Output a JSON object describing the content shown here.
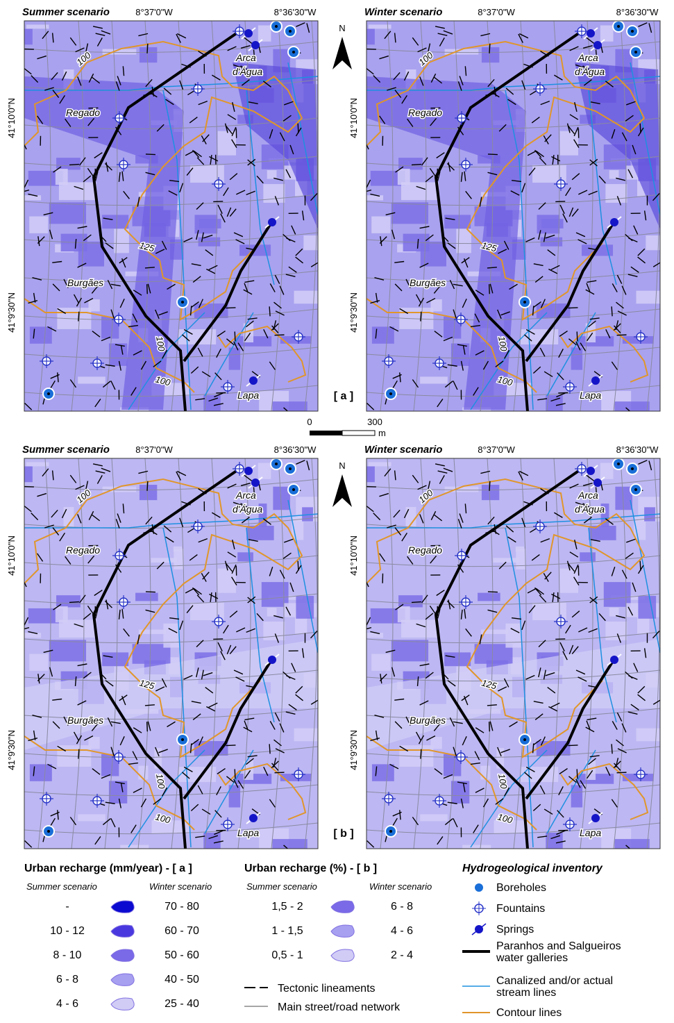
{
  "maps": [
    {
      "title": "Summer scenario",
      "label": "[ a ]"
    },
    {
      "title": "Winter scenario"
    },
    {
      "title": "Summer scenario",
      "label": "[ b ]"
    },
    {
      "title": "Winter scenario"
    }
  ],
  "coordinates": {
    "lon": [
      "8°37'0\"W",
      "8°36'30\"W"
    ],
    "lat": [
      "41°10'0\"N",
      "41°9'30\"N"
    ]
  },
  "places": {
    "regado": "Regado",
    "burgaes": "Burgães",
    "arca": [
      "Arca",
      "d'Água"
    ],
    "lapa": "Lapa"
  },
  "contours": [
    "100",
    "125",
    "100",
    "100"
  ],
  "north": "N",
  "scale": {
    "ticks": [
      "0",
      "300"
    ],
    "unit": "m"
  },
  "legend": {
    "recharge_mm": {
      "title": "Urban recharge (mm/year) - [ a ]",
      "summer_heading": "Summer scenario",
      "winter_heading": "Winter scenario",
      "summer": [
        "-",
        "10 - 12",
        "8 - 10",
        "6 - 8",
        "4 - 6"
      ],
      "winter": [
        "70 - 80",
        "60 - 70",
        "50 - 60",
        "40 - 50",
        "25 - 40"
      ]
    },
    "recharge_pct": {
      "title": "Urban recharge (%) - [ b ]",
      "summer_heading": "Summer scenario",
      "winter_heading": "Winter scenario",
      "summer": [
        "1,5 - 2",
        "1 - 1,5",
        "0,5 - 1"
      ],
      "winter": [
        "6 - 8",
        "4 - 6",
        "2 - 4"
      ]
    },
    "lines": [
      "Tectonic lineaments",
      "Main street/road network"
    ],
    "inventory": {
      "title": "Hydrogeological inventory",
      "items": [
        [
          "Boreholes"
        ],
        [
          "Fountains"
        ],
        [
          "Springs"
        ],
        [
          "Paranhos and Salgueiros",
          "water galleries"
        ],
        [
          "Canalized and/or actual",
          "stream lines"
        ],
        [
          "Contour lines"
        ]
      ]
    }
  }
}
